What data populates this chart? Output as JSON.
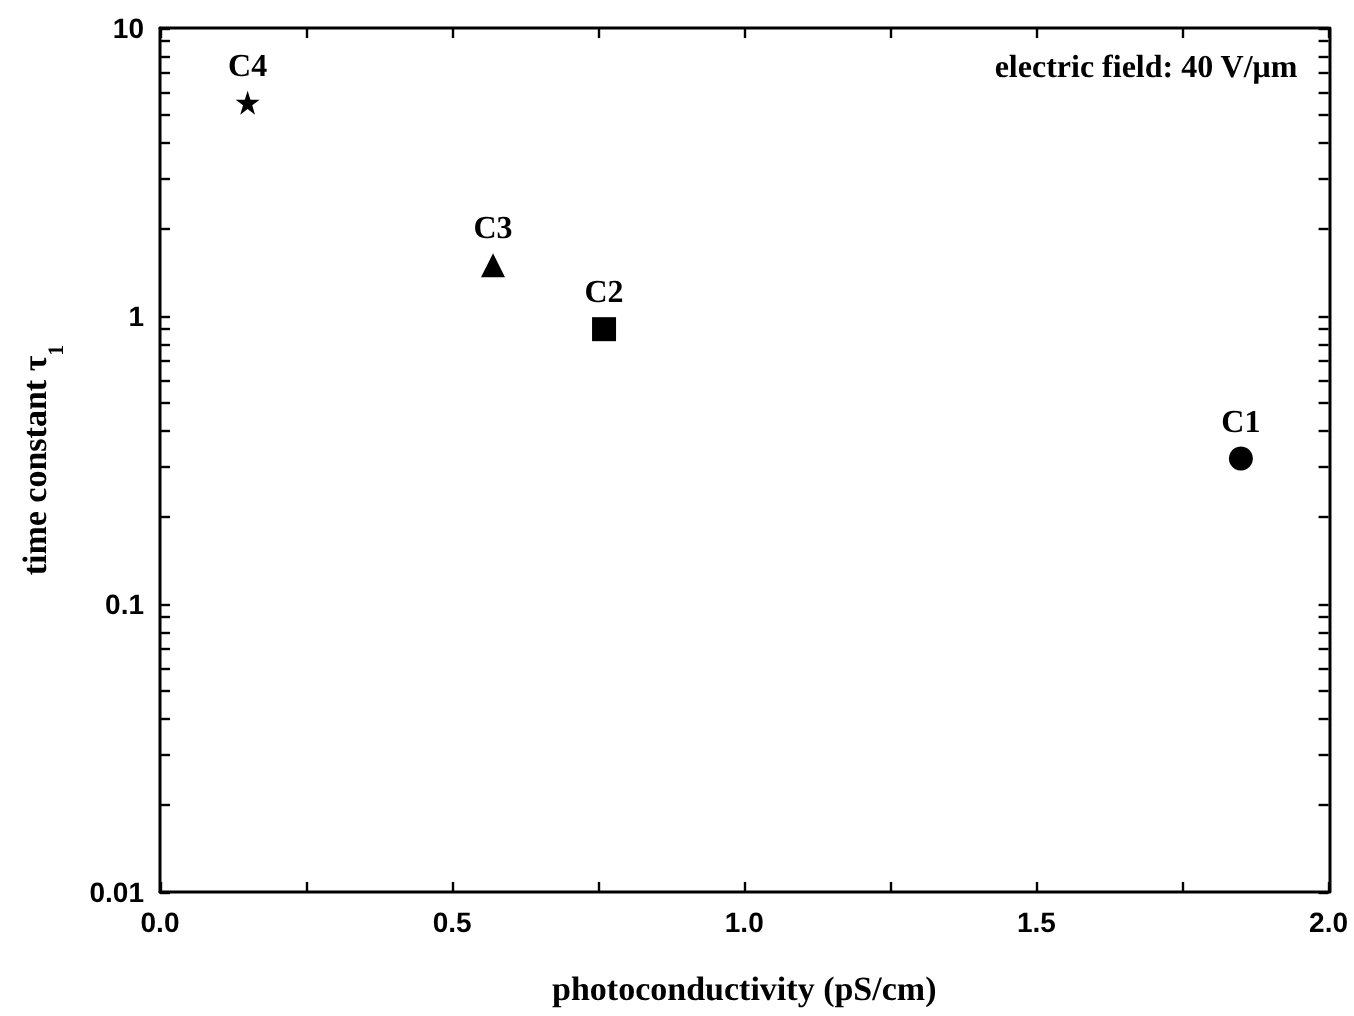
{
  "chart_data": {
    "type": "scatter",
    "xlabel": "photoconductivity (pS/cm)",
    "ylabel": "time constant τ$_{1}$",
    "log": "y",
    "grid": false,
    "xlim": [
      0,
      2
    ],
    "xticks": [
      {
        "value": 0,
        "label": "0.0"
      },
      {
        "value": 0.25,
        "label": null
      },
      0.5,
      {
        "value": 0.75,
        "label": null
      },
      {
        "value": 1,
        "label": "1.0"
      },
      {
        "value": 1.25,
        "label": null
      },
      1.5,
      {
        "value": 1.75,
        "label": null
      },
      {
        "value": 2,
        "label": "2.0"
      }
    ],
    "ylim": [
      0.01,
      10
    ],
    "yticks": [
      0.01,
      {
        "value": 0.02,
        "label": null
      },
      {
        "value": 0.03,
        "label": null
      },
      {
        "value": 0.04,
        "label": null
      },
      {
        "value": 0.05,
        "label": null
      },
      {
        "value": 0.06,
        "label": null
      },
      {
        "value": 0.07,
        "label": null
      },
      {
        "value": 0.08,
        "label": null
      },
      {
        "value": 0.09,
        "label": null
      },
      0.1,
      {
        "value": 0.2,
        "label": null
      },
      {
        "value": 0.3,
        "label": null
      },
      {
        "value": 0.4,
        "label": null
      },
      {
        "value": 0.5,
        "label": null
      },
      {
        "value": 0.6,
        "label": null
      },
      {
        "value": 0.7,
        "label": null
      },
      {
        "value": 0.8,
        "label": null
      },
      {
        "value": 0.9,
        "label": null
      },
      1,
      {
        "value": 2,
        "label": null
      },
      {
        "value": 3,
        "label": null
      },
      {
        "value": 4,
        "label": null
      },
      {
        "value": 5,
        "label": null
      },
      {
        "value": 6,
        "label": null
      },
      {
        "value": 7,
        "label": null
      },
      {
        "value": 8,
        "label": null
      },
      {
        "value": 9,
        "label": null
      },
      10
    ],
    "annotations": [
      "electric field: 40 V/μm",
      {
        "text": "C4",
        "x": 0.15,
        "y": 5.5
      },
      {
        "text": "C3",
        "x": 0.57,
        "y": 1.5
      },
      {
        "text": "C2",
        "x": 0.76,
        "y": 0.9
      },
      {
        "text": "C1",
        "x": 1.85,
        "y": 0.32
      }
    ],
    "series": [
      {
        "color": "#000000",
        "marker": "star",
        "x": [
          0.15
        ],
        "values": [
          5.5
        ]
      },
      {
        "color": "#000000",
        "marker": "triangle",
        "x": [
          0.57
        ],
        "values": [
          1.5
        ]
      },
      {
        "color": "#000000",
        "marker": "square",
        "x": [
          0.76
        ],
        "values": [
          0.9
        ]
      },
      {
        "color": "#000000",
        "marker": "circle",
        "x": [
          1.85
        ],
        "values": [
          0.32
        ]
      }
    ]
  }
}
